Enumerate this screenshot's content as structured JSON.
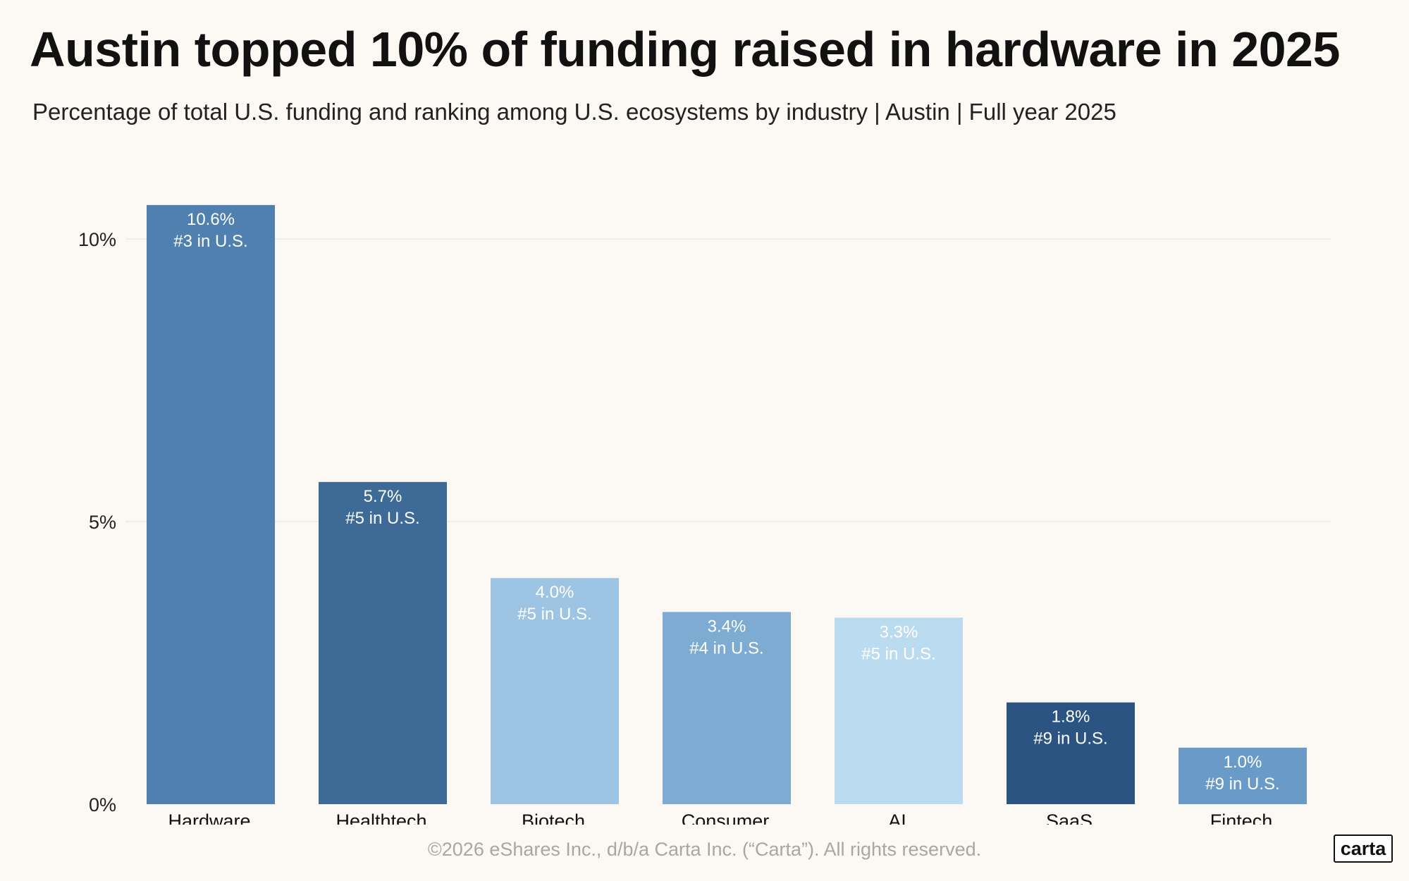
{
  "header": {
    "title": "Austin topped 10% of funding raised in hardware in 2025",
    "subtitle": "Percentage of total U.S. funding and ranking among U.S. ecosystems by industry | Austin | Full year 2025"
  },
  "chart_data": {
    "type": "bar",
    "title": "Austin topped 10% of funding raised in hardware in 2025",
    "subtitle": "Percentage of total U.S. funding and ranking among U.S. ecosystems by industry | Austin | Full year 2025",
    "xlabel": "",
    "ylabel": "",
    "categories": [
      "Hardware",
      "Healthtech",
      "Biotech",
      "Consumer",
      "AI",
      "SaaS",
      "Fintech"
    ],
    "values": [
      10.6,
      5.7,
      4.0,
      3.4,
      3.3,
      1.8,
      1.0
    ],
    "value_labels": [
      "10.6%",
      "5.7%",
      "4.0%",
      "3.4%",
      "3.3%",
      "1.8%",
      "1.0%"
    ],
    "rank_labels": [
      "#3 in U.S.",
      "#5 in U.S.",
      "#5 in U.S.",
      "#4 in U.S.",
      "#5 in U.S.",
      "#9 in U.S.",
      "#9 in U.S."
    ],
    "bar_colors": [
      "#5080b0",
      "#3d6a96",
      "#9dc4e2",
      "#7eabd2",
      "#bbdcf0",
      "#2c5482",
      "#6a9bc8"
    ],
    "yticks": [
      0,
      5,
      10
    ],
    "ytick_labels": [
      "0%",
      "5%",
      "10%"
    ],
    "ylim": [
      0,
      11.2
    ],
    "grid": true,
    "legend": "none"
  },
  "footer": {
    "copyright": "©2026 eShares Inc., d/b/a Carta Inc. (“Carta”). All rights reserved.",
    "logo_text": "carta"
  }
}
